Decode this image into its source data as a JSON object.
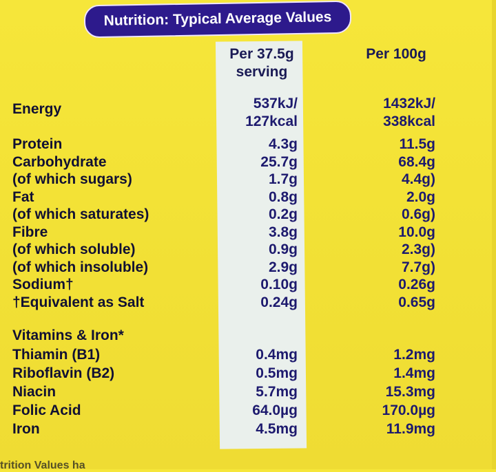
{
  "title": "Nutrition: Typical Average Values",
  "headers": {
    "serving_line1": "Per 37.5g",
    "serving_line2": "serving",
    "per100": "Per 100g"
  },
  "energy": {
    "label": "Energy",
    "serving_kj": "537kJ/",
    "serving_kcal": "127kcal",
    "per100_kj": "1432kJ/",
    "per100_kcal": "338kcal"
  },
  "rows": [
    {
      "label": "Protein",
      "serving": "4.3g",
      "per100": "11.5g"
    },
    {
      "label": "Carbohydrate",
      "serving": "25.7g",
      "per100": "68.4g"
    },
    {
      "label": "(of which sugars)",
      "serving": "1.7g",
      "per100": "4.4g)"
    },
    {
      "label": "Fat",
      "serving": "0.8g",
      "per100": "2.0g"
    },
    {
      "label": "(of which saturates)",
      "serving": "0.2g",
      "per100": "0.6g)"
    },
    {
      "label": "Fibre",
      "serving": "3.8g",
      "per100": "10.0g"
    },
    {
      "label": "(of which soluble)",
      "serving": "0.9g",
      "per100": "2.3g)"
    },
    {
      "label": "(of which insoluble)",
      "serving": "2.9g",
      "per100": "7.7g)"
    },
    {
      "label": "Sodium†",
      "serving": "0.10g",
      "per100": "0.26g"
    },
    {
      "label": "†Equivalent as Salt",
      "serving": "0.24g",
      "per100": "0.65g"
    }
  ],
  "vitamins_heading": "Vitamins & Iron*",
  "vitamins": [
    {
      "label": "Thiamin (B1)",
      "serving": "0.4mg",
      "per100": "1.2mg"
    },
    {
      "label": "Riboflavin (B2)",
      "serving": "0.5mg",
      "per100": "1.4mg"
    },
    {
      "label": "Niacin",
      "serving": "5.7mg",
      "per100": "15.3mg"
    },
    {
      "label": "Folic Acid",
      "serving": "64.0µg",
      "per100": "170.0µg"
    },
    {
      "label": "Iron",
      "serving": "4.5mg",
      "per100": "11.9mg"
    }
  ],
  "footer_text": "trition Values ha"
}
